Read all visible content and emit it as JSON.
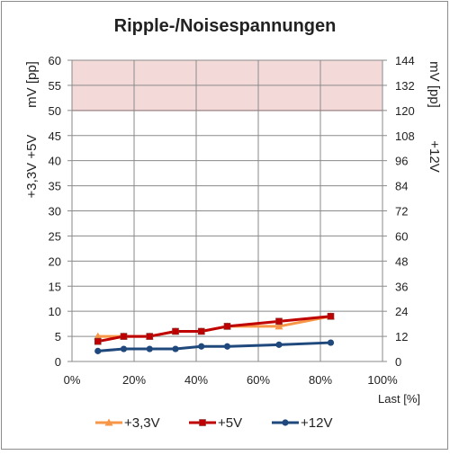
{
  "chart_data": {
    "type": "line",
    "title": "Ripple-/Noisespannungen",
    "xlabel": "Last [%]",
    "ylabel_left": [
      "+3,3V +5V",
      "mV [pp]"
    ],
    "ylabel_right": [
      "+12V",
      "mV [pp]"
    ],
    "x_ticks": [
      "0%",
      "20%",
      "40%",
      "60%",
      "80%",
      "100%"
    ],
    "xlim": [
      0,
      1.2
    ],
    "y_left_ticks": [
      "0",
      "5",
      "10",
      "15",
      "20",
      "25",
      "30",
      "35",
      "40",
      "45",
      "50",
      "55",
      "60"
    ],
    "y_right_ticks": [
      "0",
      "12",
      "24",
      "36",
      "48",
      "60",
      "72",
      "84",
      "96",
      "108",
      "120",
      "132",
      "144"
    ],
    "ylim_left": [
      0,
      60
    ],
    "ylim_right": [
      0,
      144
    ],
    "limit_band": {
      "from": 50,
      "to": 60,
      "color": "#f4d9d9",
      "border": "#cc3333"
    },
    "grid": true,
    "legend_position": "bottom",
    "x": [
      0.1,
      0.2,
      0.3,
      0.4,
      0.5,
      0.6,
      0.8,
      1.0
    ],
    "series": [
      {
        "name": "+3,3V",
        "axis": "left",
        "color": "#f79646",
        "marker": "triangle",
        "values": [
          5,
          5,
          5,
          6,
          6,
          7,
          7,
          9
        ]
      },
      {
        "name": "+5V",
        "axis": "left",
        "color": "#c00000",
        "marker": "square",
        "values": [
          4,
          5,
          5,
          6,
          6,
          7,
          8,
          9
        ]
      },
      {
        "name": "+12V",
        "axis": "right",
        "color": "#1f497d",
        "marker": "circle",
        "values": [
          5,
          6,
          6,
          6,
          7.2,
          7.2,
          8,
          9
        ]
      }
    ]
  }
}
